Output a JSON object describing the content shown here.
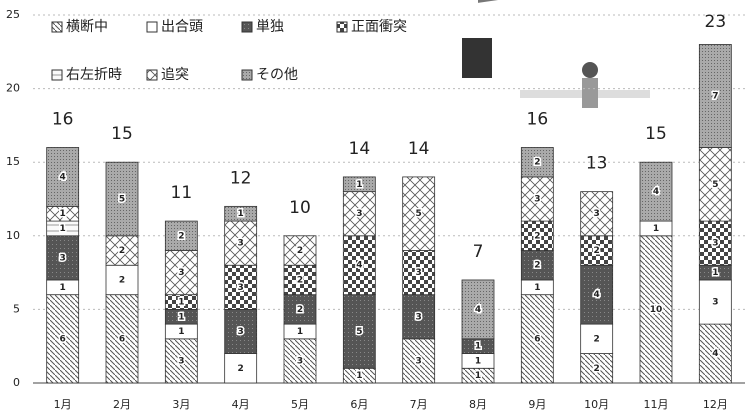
{
  "chart_data": {
    "type": "stacked_bar",
    "categories": [
      "1月",
      "2月",
      "3月",
      "4月",
      "5月",
      "6月",
      "7月",
      "8月",
      "9月",
      "10月",
      "11月",
      "12月"
    ],
    "series": [
      {
        "name": "横断中",
        "color": "#d9d9d9",
        "values": [
          6,
          6,
          3,
          0,
          3,
          1,
          3,
          1,
          6,
          2,
          10,
          4
        ]
      },
      {
        "name": "出合頭",
        "color": "#ffffff",
        "values": [
          1,
          2,
          1,
          2,
          1,
          0,
          0,
          1,
          1,
          2,
          1,
          3
        ]
      },
      {
        "name": "単独",
        "color": "#555555",
        "values": [
          3,
          0,
          1,
          3,
          2,
          5,
          3,
          1,
          2,
          4,
          0,
          1
        ]
      },
      {
        "name": "正面衝突",
        "color": "#8a8a8a",
        "values": [
          0,
          0,
          1,
          3,
          2,
          4,
          3,
          0,
          2,
          2,
          0,
          3
        ]
      },
      {
        "name": "右左折時",
        "color": "#f4f4f4",
        "values": [
          1,
          0,
          0,
          0,
          0,
          0,
          0,
          0,
          0,
          0,
          0,
          0
        ]
      },
      {
        "name": "追突",
        "color": "#eeeeee",
        "values": [
          1,
          2,
          3,
          3,
          2,
          3,
          5,
          0,
          3,
          3,
          0,
          5
        ]
      },
      {
        "name": "その他",
        "color": "#b8b8b8",
        "values": [
          4,
          5,
          2,
          1,
          0,
          1,
          0,
          4,
          2,
          0,
          4,
          7
        ]
      }
    ],
    "totals": [
      16,
      15,
      11,
      12,
      10,
      14,
      14,
      7,
      16,
      13,
      15,
      23
    ],
    "ylim": [
      0,
      25
    ],
    "yticks": [
      0,
      5,
      10,
      15,
      20,
      25
    ],
    "grid": true
  }
}
